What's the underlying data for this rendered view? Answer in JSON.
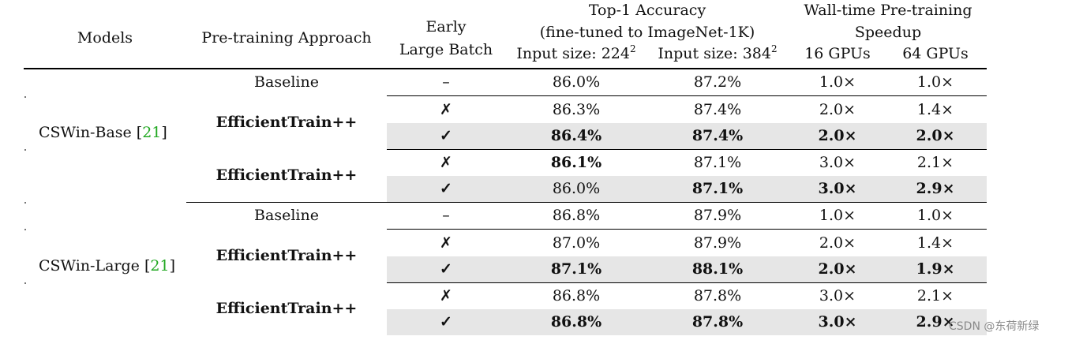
{
  "header": {
    "models": "Models",
    "approach": "Pre-training Approach",
    "early_line1": "Early",
    "early_line2": "Large Batch",
    "acc_line1": "Top-1 Accuracy",
    "acc_line2": "(fine-tuned to ImageNet-1K)",
    "input224_text": "Input size: 224",
    "input384_text": "Input size: 384",
    "sup": "2",
    "speed_line1": "Wall-time Pre-training",
    "speed_line2": "Speedup",
    "gpu16": "16 GPUs",
    "gpu64": "64 GPUs"
  },
  "groups": [
    {
      "model_name": "CSWin-Base [",
      "model_cite": "21",
      "model_close": "]",
      "baseline": {
        "approach": "Baseline",
        "early": "–",
        "acc224": "86.0%",
        "acc384": "87.2%",
        "s16": "1.0×",
        "s64": "1.0×"
      },
      "blocks": [
        {
          "approach": "EfficientTrain++",
          "rows": [
            {
              "early": "✗",
              "acc224": "86.3%",
              "acc384": "87.4%",
              "s16": "2.0×",
              "s64": "1.4×"
            },
            {
              "early": "✓",
              "acc224": "86.4%",
              "acc384": "87.4%",
              "s16": "2.0×",
              "s64": "2.0×"
            }
          ]
        },
        {
          "approach": "EfficientTrain++",
          "rows": [
            {
              "early": "✗",
              "acc224": "86.1%",
              "acc384": "87.1%",
              "s16": "3.0×",
              "s64": "2.1×"
            },
            {
              "early": "✓",
              "acc224": "86.0%",
              "acc384": "87.1%",
              "s16": "3.0×",
              "s64": "2.9×"
            }
          ]
        }
      ]
    },
    {
      "model_name": "CSWin-Large [",
      "model_cite": "21",
      "model_close": "]",
      "baseline": {
        "approach": "Baseline",
        "early": "–",
        "acc224": "86.8%",
        "acc384": "87.9%",
        "s16": "1.0×",
        "s64": "1.0×"
      },
      "blocks": [
        {
          "approach": "EfficientTrain++",
          "rows": [
            {
              "early": "✗",
              "acc224": "87.0%",
              "acc384": "87.9%",
              "s16": "2.0×",
              "s64": "1.4×"
            },
            {
              "early": "✓",
              "acc224": "87.1%",
              "acc384": "88.1%",
              "s16": "2.0×",
              "s64": "1.9×"
            }
          ]
        },
        {
          "approach": "EfficientTrain++",
          "rows": [
            {
              "early": "✗",
              "acc224": "86.8%",
              "acc384": "87.8%",
              "s16": "3.0×",
              "s64": "2.1×"
            },
            {
              "early": "✓",
              "acc224": "86.8%",
              "acc384": "87.8%",
              "s16": "3.0×",
              "s64": "2.9×"
            }
          ]
        }
      ]
    }
  ],
  "watermark": "CSDN @东荷新绿"
}
